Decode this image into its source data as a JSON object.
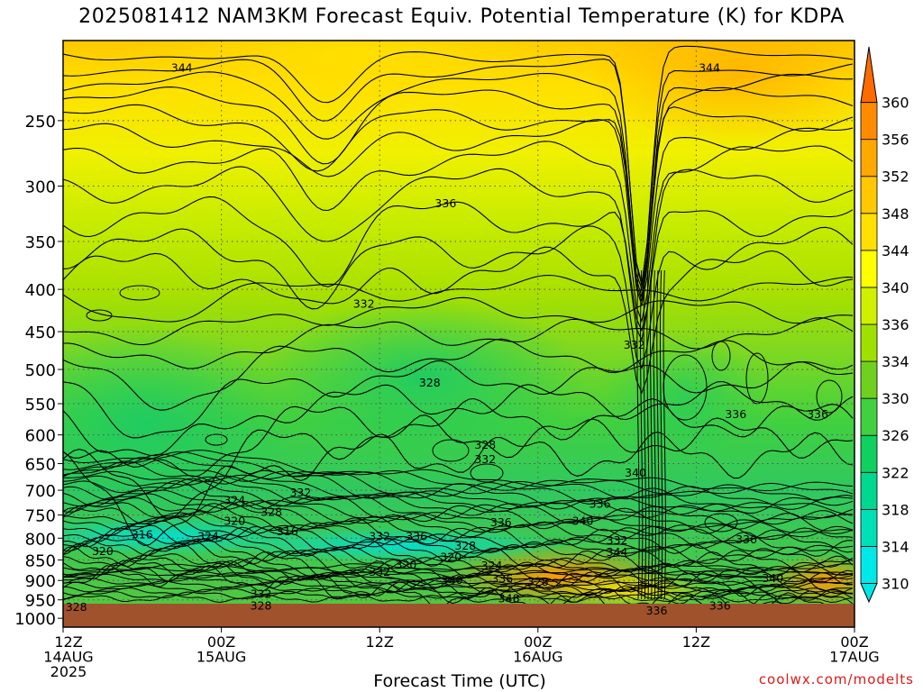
{
  "title": "2025081412 NAM3KM Forecast Equiv. Potential Temperature (K) for KDPA",
  "credit": "coolwx.com/modelts",
  "colors": {
    "ground": "#a0522d",
    "grid": "#555555",
    "contour": "#000000"
  },
  "chart_data": {
    "type": "heatmap",
    "title": "2025081412 NAM3KM Forecast Equiv. Potential Temperature (K) for KDPA",
    "xlabel": "Forecast Time (UTC)",
    "ylabel": "",
    "x_ticks": [
      {
        "hour": 0,
        "lines": [
          "12Z",
          "14AUG",
          "2025"
        ]
      },
      {
        "hour": 12,
        "lines": [
          "00Z",
          "15AUG"
        ]
      },
      {
        "hour": 24,
        "lines": [
          "12Z"
        ]
      },
      {
        "hour": 36,
        "lines": [
          "00Z",
          "16AUG"
        ]
      },
      {
        "hour": 48,
        "lines": [
          "12Z"
        ]
      },
      {
        "hour": 60,
        "lines": [
          "00Z",
          "17AUG"
        ]
      }
    ],
    "xlim_hours": [
      0,
      60
    ],
    "y_ticks": [
      250,
      300,
      350,
      400,
      450,
      500,
      550,
      600,
      650,
      700,
      750,
      800,
      850,
      900,
      950,
      1000
    ],
    "ylim_hpa": [
      200,
      1025
    ],
    "y_scale": "log",
    "grid": true,
    "colorbar": {
      "levels": [
        310,
        314,
        318,
        322,
        326,
        330,
        334,
        336,
        340,
        344,
        348,
        352,
        356,
        360
      ],
      "colors": [
        "#00e8e8",
        "#00e0b8",
        "#00d890",
        "#10d060",
        "#40d040",
        "#70d020",
        "#a0e000",
        "#d0f000",
        "#ffff00",
        "#ffe000",
        "#ffc800",
        "#ffa800",
        "#ff8c00",
        "#ff6a00"
      ]
    },
    "contour_labels": [
      {
        "value": 344,
        "hour": 9.0,
        "hpa": 216
      },
      {
        "value": 344,
        "hour": 49.0,
        "hpa": 216
      },
      {
        "value": 336,
        "hour": 29.0,
        "hpa": 315
      },
      {
        "value": 332,
        "hour": 22.8,
        "hpa": 417
      },
      {
        "value": 332,
        "hour": 43.3,
        "hpa": 467
      },
      {
        "value": 328,
        "hour": 27.8,
        "hpa": 519
      },
      {
        "value": 336,
        "hour": 51.0,
        "hpa": 567
      },
      {
        "value": 336,
        "hour": 57.2,
        "hpa": 567
      },
      {
        "value": 328,
        "hour": 32.0,
        "hpa": 617
      },
      {
        "value": 332,
        "hour": 32.0,
        "hpa": 643
      },
      {
        "value": 340,
        "hour": 43.4,
        "hpa": 667
      },
      {
        "value": 324,
        "hour": 13.0,
        "hpa": 720
      },
      {
        "value": 332,
        "hour": 18.0,
        "hpa": 705
      },
      {
        "value": 320,
        "hour": 13.0,
        "hpa": 763
      },
      {
        "value": 328,
        "hour": 15.8,
        "hpa": 744
      },
      {
        "value": 336,
        "hour": 40.7,
        "hpa": 728
      },
      {
        "value": 336,
        "hour": 33.2,
        "hpa": 766
      },
      {
        "value": 340,
        "hour": 39.4,
        "hpa": 763
      },
      {
        "value": 316,
        "hour": 6.0,
        "hpa": 792
      },
      {
        "value": 324,
        "hour": 11.0,
        "hpa": 796
      },
      {
        "value": 316,
        "hour": 17.0,
        "hpa": 786
      },
      {
        "value": 332,
        "hour": 24.0,
        "hpa": 796
      },
      {
        "value": 336,
        "hour": 26.8,
        "hpa": 796
      },
      {
        "value": 328,
        "hour": 30.5,
        "hpa": 818
      },
      {
        "value": 332,
        "hour": 42.0,
        "hpa": 806
      },
      {
        "value": 336,
        "hour": 51.8,
        "hpa": 803
      },
      {
        "value": 320,
        "hour": 3.0,
        "hpa": 830
      },
      {
        "value": 344,
        "hour": 42.0,
        "hpa": 832
      },
      {
        "value": 320,
        "hour": 29.4,
        "hpa": 844
      },
      {
        "value": 320,
        "hour": 26.0,
        "hpa": 862
      },
      {
        "value": 332,
        "hour": 24.0,
        "hpa": 880
      },
      {
        "value": 324,
        "hour": 32.5,
        "hpa": 864
      },
      {
        "value": 340,
        "hour": 29.5,
        "hpa": 900
      },
      {
        "value": 336,
        "hour": 33.3,
        "hpa": 896
      },
      {
        "value": 328,
        "hour": 36.0,
        "hpa": 904
      },
      {
        "value": 340,
        "hour": 53.8,
        "hpa": 895
      },
      {
        "value": 332,
        "hour": 15.0,
        "hpa": 935
      },
      {
        "value": 328,
        "hour": 15.0,
        "hpa": 966
      },
      {
        "value": 348,
        "hour": 33.8,
        "hpa": 947
      },
      {
        "value": 328,
        "hour": 1.0,
        "hpa": 970
      },
      {
        "value": 336,
        "hour": 45.0,
        "hpa": 980
      },
      {
        "value": 336,
        "hour": 49.8,
        "hpa": 966
      }
    ]
  }
}
